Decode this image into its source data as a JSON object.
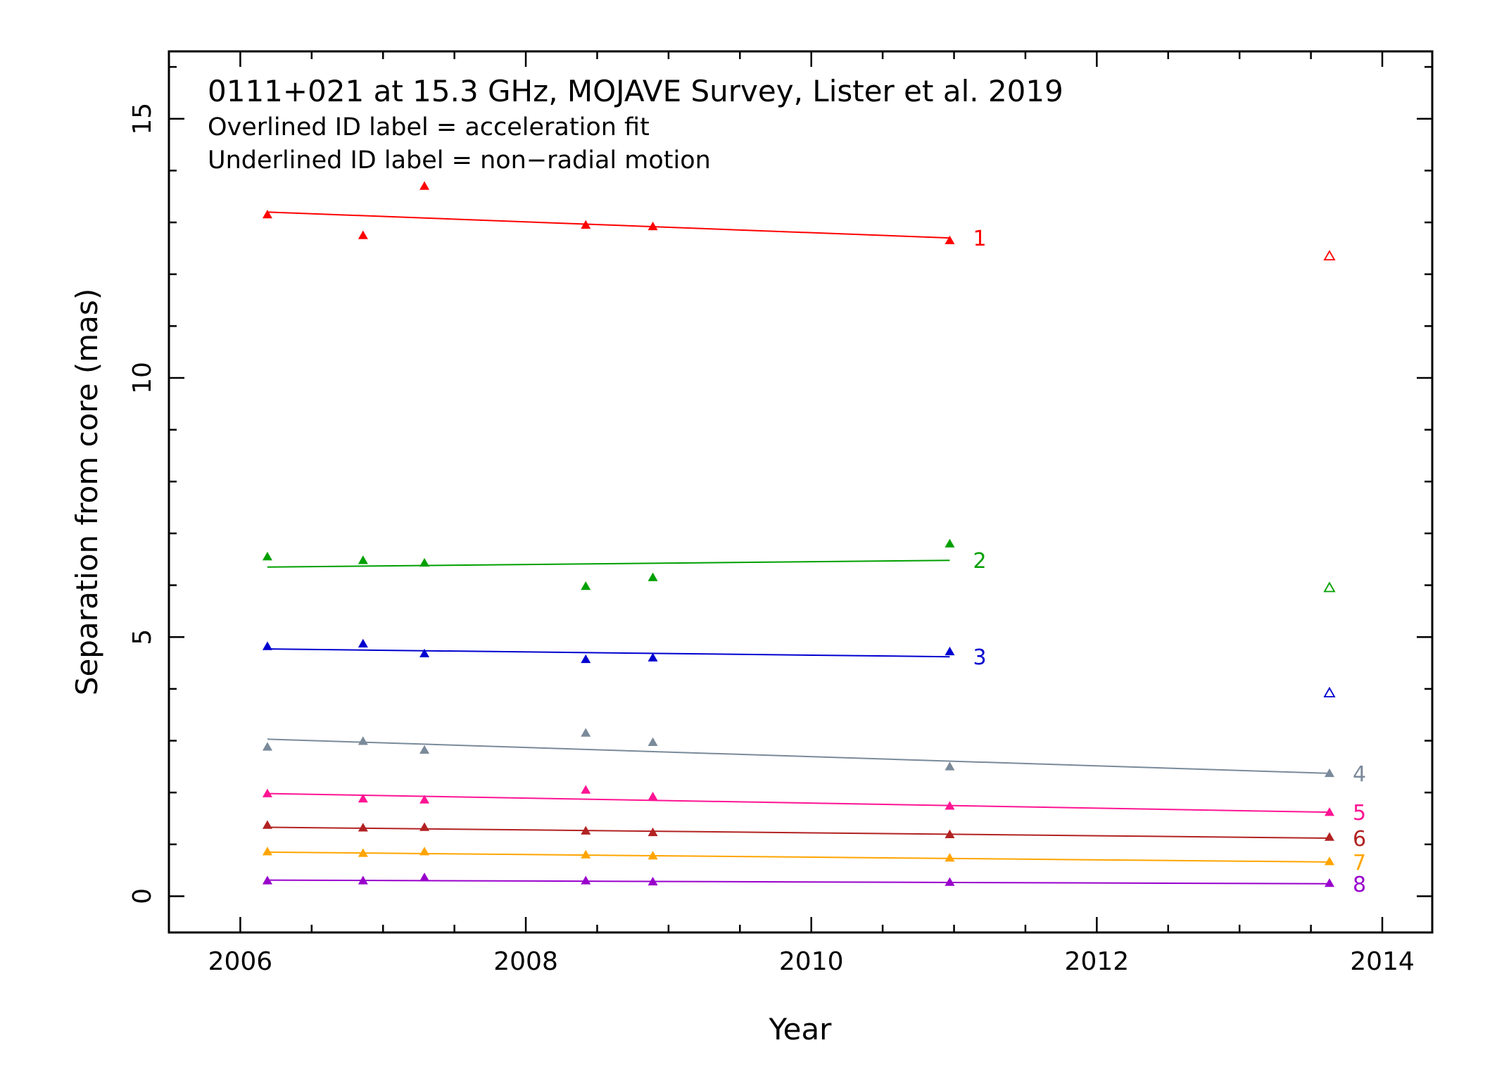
{
  "chart_data": {
    "type": "scatter",
    "title": "0111+021 at 15.3 GHz, MOJAVE Survey, Lister et al. 2019",
    "notes": [
      "Overlined ID label = acceleration fit",
      "Underlined ID label = non−radial motion"
    ],
    "xlabel": "Year",
    "ylabel": "Separation from core (mas)",
    "xlim": [
      2005.5,
      2014.35
    ],
    "ylim": [
      -0.7,
      16.3
    ],
    "xticks": [
      2006,
      2008,
      2010,
      2012,
      2014
    ],
    "yticks": [
      0,
      5,
      10,
      15
    ],
    "grid": false,
    "series": [
      {
        "name": "1",
        "color": "#ff0000",
        "points": [
          [
            2006.19,
            13.15
          ],
          [
            2006.86,
            12.75
          ],
          [
            2007.29,
            13.7
          ],
          [
            2008.42,
            12.95
          ],
          [
            2008.89,
            12.92
          ],
          [
            2010.97,
            12.65
          ]
        ],
        "fit": [
          [
            2006.19,
            13.2
          ],
          [
            2010.97,
            12.7
          ]
        ],
        "open_points": [
          [
            2013.63,
            12.35
          ]
        ]
      },
      {
        "name": "2",
        "color": "#00a000",
        "points": [
          [
            2006.19,
            6.55
          ],
          [
            2006.86,
            6.48
          ],
          [
            2007.29,
            6.43
          ],
          [
            2008.42,
            5.98
          ],
          [
            2008.89,
            6.15
          ],
          [
            2010.97,
            6.8
          ]
        ],
        "fit": [
          [
            2006.19,
            6.35
          ],
          [
            2010.97,
            6.48
          ]
        ],
        "open_points": [
          [
            2013.63,
            5.95
          ]
        ]
      },
      {
        "name": "3",
        "color": "#0000d0",
        "points": [
          [
            2006.19,
            4.82
          ],
          [
            2006.86,
            4.87
          ],
          [
            2007.29,
            4.68
          ],
          [
            2008.42,
            4.57
          ],
          [
            2008.89,
            4.6
          ],
          [
            2010.97,
            4.72
          ]
        ],
        "fit": [
          [
            2006.19,
            4.77
          ],
          [
            2010.97,
            4.62
          ]
        ],
        "open_points": [
          [
            2013.63,
            3.92
          ]
        ]
      },
      {
        "name": "4",
        "color": "#7a8a9a",
        "points": [
          [
            2006.19,
            2.88
          ],
          [
            2006.86,
            2.99
          ],
          [
            2007.29,
            2.82
          ],
          [
            2008.42,
            3.15
          ],
          [
            2008.89,
            2.97
          ],
          [
            2010.97,
            2.5
          ],
          [
            2013.63,
            2.37
          ]
        ],
        "fit": [
          [
            2006.19,
            3.03
          ],
          [
            2013.63,
            2.37
          ]
        ]
      },
      {
        "name": "5",
        "color": "#ff1493",
        "points": [
          [
            2006.19,
            1.98
          ],
          [
            2006.86,
            1.88
          ],
          [
            2007.29,
            1.86
          ],
          [
            2008.42,
            2.05
          ],
          [
            2008.89,
            1.92
          ],
          [
            2010.97,
            1.74
          ],
          [
            2013.63,
            1.62
          ]
        ],
        "fit": [
          [
            2006.19,
            1.98
          ],
          [
            2013.63,
            1.62
          ]
        ]
      },
      {
        "name": "6",
        "color": "#b22222",
        "points": [
          [
            2006.19,
            1.37
          ],
          [
            2006.86,
            1.32
          ],
          [
            2007.29,
            1.33
          ],
          [
            2008.42,
            1.26
          ],
          [
            2008.89,
            1.23
          ],
          [
            2010.97,
            1.19
          ],
          [
            2013.63,
            1.14
          ]
        ],
        "fit": [
          [
            2006.19,
            1.33
          ],
          [
            2013.63,
            1.12
          ]
        ]
      },
      {
        "name": "7",
        "color": "#ffa500",
        "points": [
          [
            2006.19,
            0.86
          ],
          [
            2006.86,
            0.83
          ],
          [
            2007.29,
            0.86
          ],
          [
            2008.42,
            0.8
          ],
          [
            2008.89,
            0.78
          ],
          [
            2010.97,
            0.74
          ],
          [
            2013.63,
            0.67
          ]
        ],
        "fit": [
          [
            2006.19,
            0.85
          ],
          [
            2013.63,
            0.66
          ]
        ]
      },
      {
        "name": "8",
        "color": "#9900cc",
        "points": [
          [
            2006.19,
            0.3
          ],
          [
            2006.86,
            0.3
          ],
          [
            2007.29,
            0.36
          ],
          [
            2008.42,
            0.3
          ],
          [
            2008.89,
            0.28
          ],
          [
            2010.97,
            0.27
          ],
          [
            2013.63,
            0.25
          ]
        ],
        "fit": [
          [
            2006.19,
            0.31
          ],
          [
            2013.63,
            0.24
          ]
        ]
      }
    ]
  }
}
